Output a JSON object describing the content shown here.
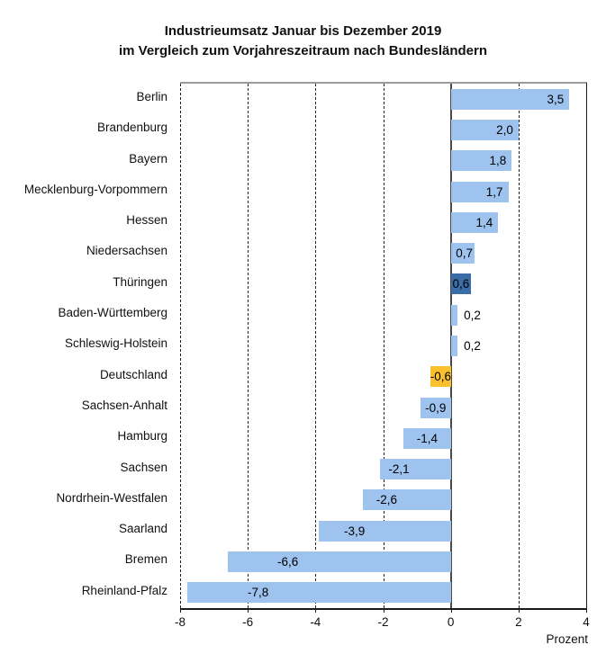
{
  "title": {
    "line1": "Industrieumsatz Januar bis Dezember 2019",
    "line2": "im Vergleich zum Vorjahreszeitraum nach Bundesländern"
  },
  "axis": {
    "ticks": [
      -8,
      -6,
      -4,
      -2,
      0,
      2,
      4
    ],
    "tick_labels": [
      "-8",
      "-6",
      "-4",
      "-2",
      "0",
      "2",
      "4"
    ],
    "unit_label": "Prozent"
  },
  "colors": {
    "bar_default": "#9DC3EE",
    "bar_highlight": "#3A6CA5",
    "bar_germany": "#FBC02D",
    "axis": "#1A1A1A",
    "top_border": "#9B9B9B"
  },
  "chart_data": {
    "type": "bar",
    "orientation": "horizontal",
    "title": "Industrieumsatz Januar bis Dezember 2019 im Vergleich zum Vorjahreszeitraum nach Bundesländern",
    "xlabel": "Prozent",
    "xlim": [
      -8,
      4
    ],
    "x_ticks": [
      -8,
      -6,
      -4,
      -2,
      0,
      2,
      4
    ],
    "grid": "dashed-vertical",
    "legend": "none",
    "series": [
      {
        "category": "Berlin",
        "value": 3.5,
        "label": "3,5",
        "color_key": "default"
      },
      {
        "category": "Brandenburg",
        "value": 2.0,
        "label": "2,0",
        "color_key": "default"
      },
      {
        "category": "Bayern",
        "value": 1.8,
        "label": "1,8",
        "color_key": "default"
      },
      {
        "category": "Mecklenburg-Vorpommern",
        "value": 1.7,
        "label": "1,7",
        "color_key": "default"
      },
      {
        "category": "Hessen",
        "value": 1.4,
        "label": "1,4",
        "color_key": "default"
      },
      {
        "category": "Niedersachsen",
        "value": 0.7,
        "label": "0,7",
        "color_key": "default"
      },
      {
        "category": "Thüringen",
        "value": 0.6,
        "label": "0,6",
        "color_key": "highlight"
      },
      {
        "category": "Baden-Württemberg",
        "value": 0.2,
        "label": "0,2",
        "color_key": "default"
      },
      {
        "category": "Schleswig-Holstein",
        "value": 0.2,
        "label": "0,2",
        "color_key": "default"
      },
      {
        "category": "Deutschland",
        "value": -0.6,
        "label": "-0,6",
        "color_key": "germany"
      },
      {
        "category": "Sachsen-Anhalt",
        "value": -0.9,
        "label": "-0,9",
        "color_key": "default"
      },
      {
        "category": "Hamburg",
        "value": -1.4,
        "label": "-1,4",
        "color_key": "default"
      },
      {
        "category": "Sachsen",
        "value": -2.1,
        "label": "-2,1",
        "color_key": "default"
      },
      {
        "category": "Nordrhein-Westfalen",
        "value": -2.6,
        "label": "-2,6",
        "color_key": "default"
      },
      {
        "category": "Saarland",
        "value": -3.9,
        "label": "-3,9",
        "color_key": "default"
      },
      {
        "category": "Bremen",
        "value": -6.6,
        "label": "-6,6",
        "color_key": "default"
      },
      {
        "category": "Rheinland-Pfalz",
        "value": -7.8,
        "label": "-7,8",
        "color_key": "default"
      }
    ]
  }
}
